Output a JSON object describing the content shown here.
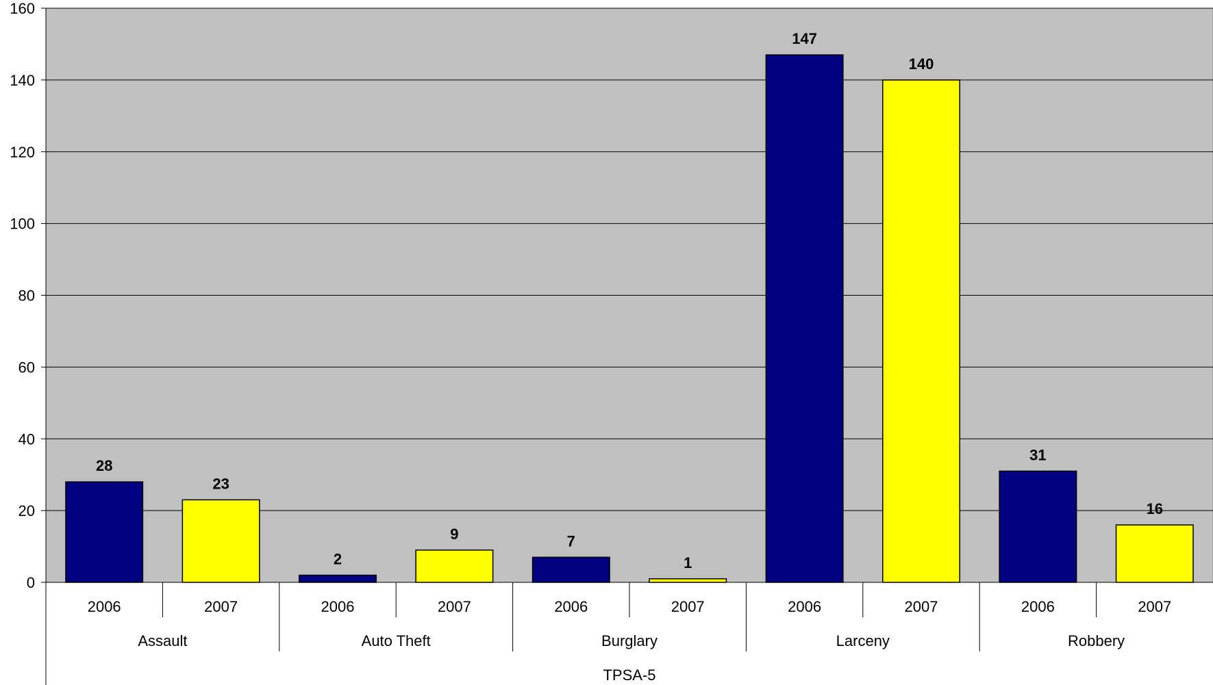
{
  "chart_data": {
    "type": "bar",
    "title": "",
    "xlabel": "",
    "ylabel": "",
    "ylim": [
      0,
      160
    ],
    "yticks": [
      0,
      20,
      40,
      60,
      80,
      100,
      120,
      140,
      160
    ],
    "grid": true,
    "legend": "none",
    "group_label": "TPSA-5",
    "categories": [
      "Assault",
      "Auto Theft",
      "Burglary",
      "Larceny",
      "Robbery"
    ],
    "subcategories": [
      "2006",
      "2007"
    ],
    "series": [
      {
        "name": "2006",
        "color": "#000080",
        "values": [
          28,
          2,
          7,
          147,
          31
        ]
      },
      {
        "name": "2007",
        "color": "#FFFF00",
        "values": [
          23,
          9,
          1,
          140,
          16
        ]
      }
    ],
    "plot_background": "#C0C0C0"
  }
}
